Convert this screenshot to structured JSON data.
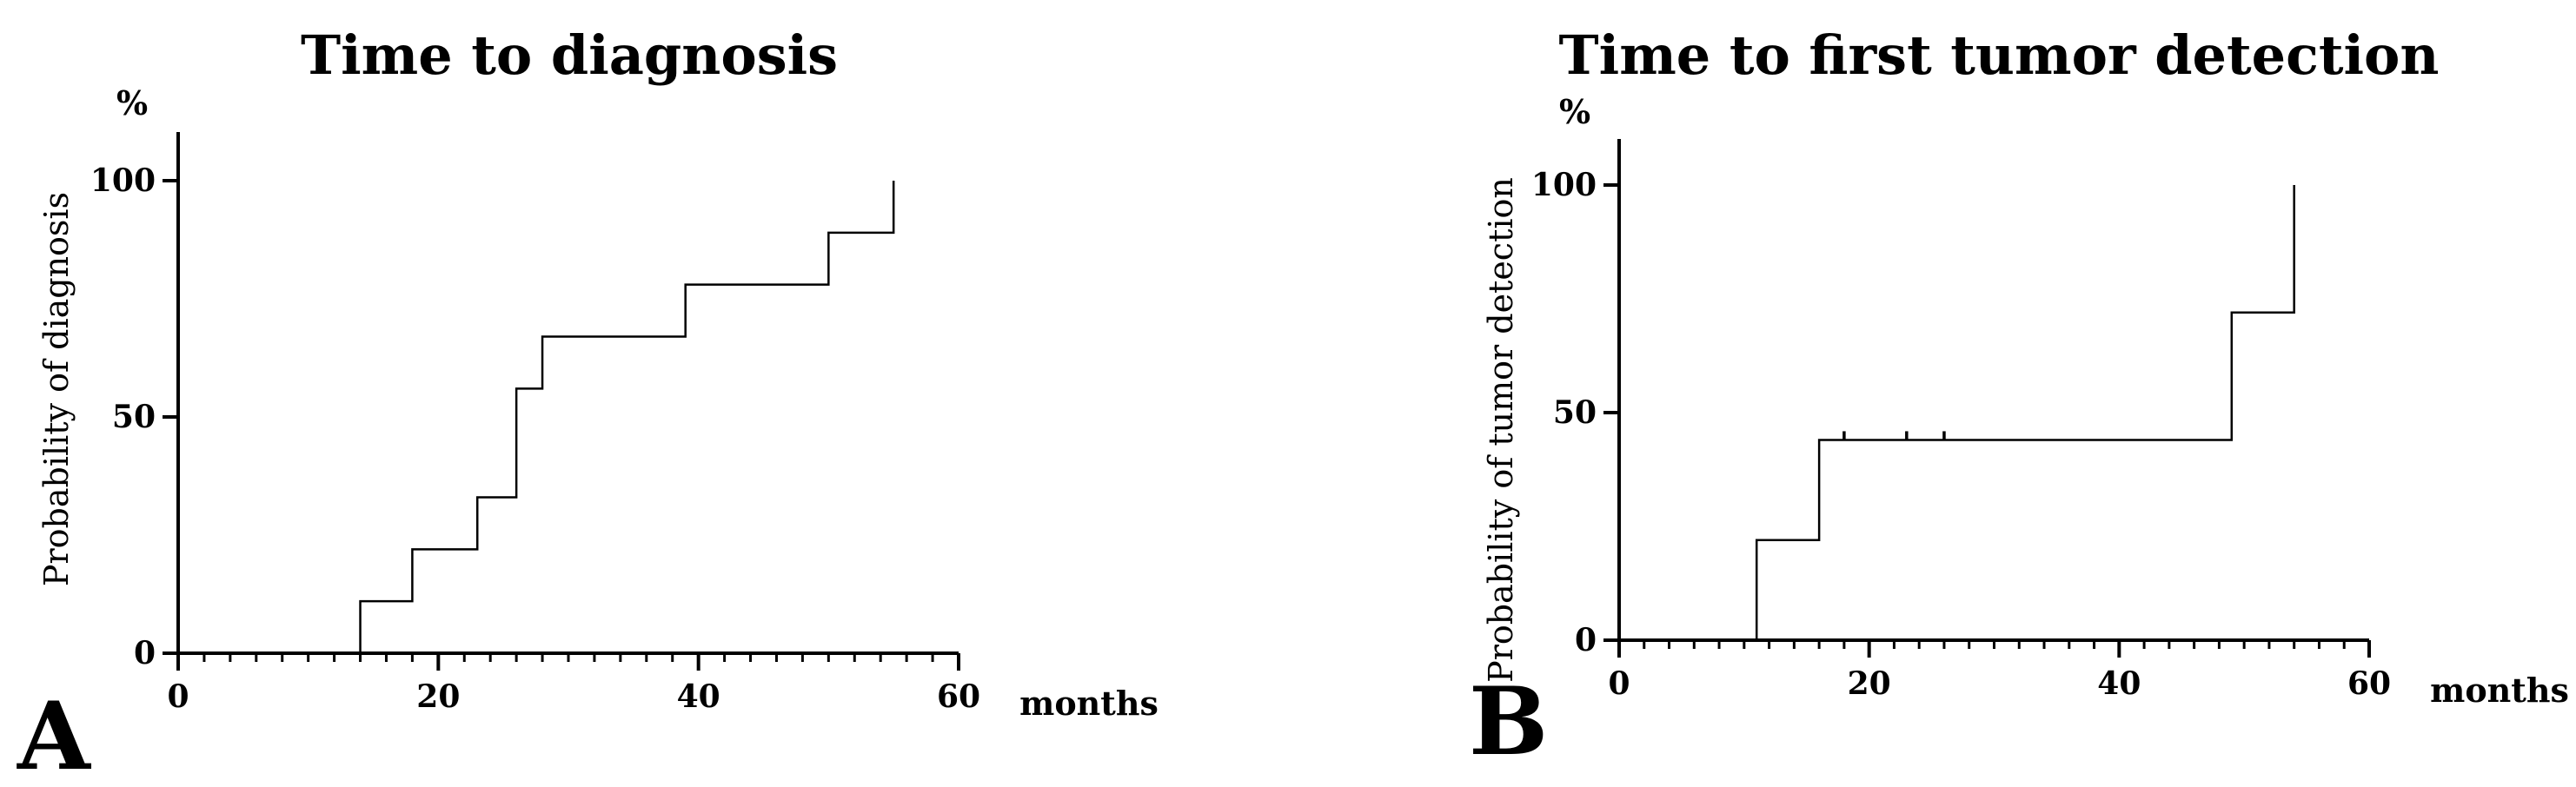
{
  "chart_data": [
    {
      "type": "line",
      "panel": "A",
      "title": "Time to diagnosis",
      "ylabel": "Probability of diagnosis",
      "yunit": "%",
      "xlabel": "months",
      "xlim": [
        0,
        60
      ],
      "ylim": [
        0,
        100
      ],
      "xticks": [
        0,
        20,
        40,
        60
      ],
      "yticks": [
        0,
        50,
        100
      ],
      "series": [
        {
          "step": true,
          "x": [
            0,
            14,
            14,
            18,
            18,
            23,
            23,
            26,
            26,
            28,
            28,
            39,
            39,
            50,
            50,
            55,
            55
          ],
          "y": [
            0,
            0,
            11,
            11,
            22,
            22,
            33,
            33,
            56,
            56,
            67,
            67,
            78,
            78,
            89,
            89,
            100
          ]
        }
      ],
      "censored": []
    },
    {
      "type": "line",
      "panel": "B",
      "title": "Time to first tumor detection",
      "ylabel": "Probability of tumor detection",
      "yunit": "%",
      "xlabel": "months",
      "xlim": [
        0,
        60
      ],
      "ylim": [
        0,
        100
      ],
      "xticks": [
        0,
        20,
        40,
        60
      ],
      "yticks": [
        0,
        50,
        100
      ],
      "series": [
        {
          "step": true,
          "x": [
            0,
            11,
            11,
            16,
            16,
            49,
            49,
            54,
            54
          ],
          "y": [
            0,
            0,
            22,
            22,
            44,
            44,
            72,
            72,
            100
          ]
        }
      ],
      "censored": [
        {
          "x": 18,
          "y": 44
        },
        {
          "x": 23,
          "y": 44
        },
        {
          "x": 26,
          "y": 44
        }
      ]
    }
  ]
}
